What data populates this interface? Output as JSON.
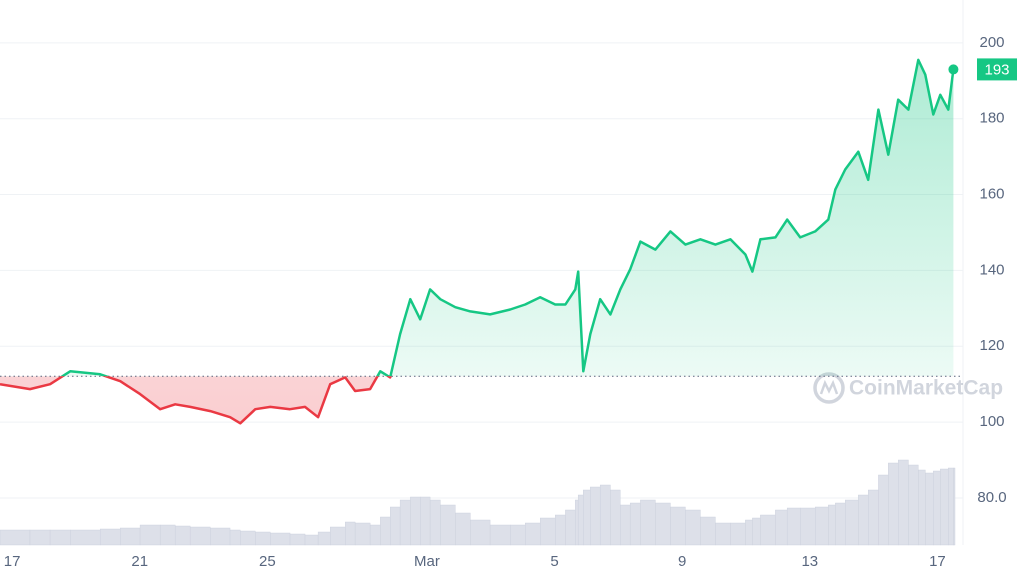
{
  "chart_data": {
    "type": "line",
    "x": [
      -0.38,
      0.56,
      1.19,
      1.82,
      2.76,
      3.39,
      4.01,
      4.64,
      5.11,
      5.58,
      6.21,
      6.83,
      7.15,
      7.62,
      8.09,
      8.71,
      9.18,
      9.59,
      9.97,
      10.44,
      10.75,
      11.22,
      11.54,
      11.85,
      12.16,
      12.48,
      12.79,
      13.1,
      13.42,
      13.89,
      14.36,
      14.98,
      15.61,
      16.08,
      16.55,
      17.02,
      17.34,
      17.65,
      17.74,
      17.9,
      18.12,
      18.43,
      18.75,
      19.06,
      19.37,
      19.69,
      20.16,
      20.63,
      21.1,
      21.57,
      22.04,
      22.51,
      22.98,
      23.2,
      23.45,
      23.92,
      24.29,
      24.7,
      25.17,
      25.58,
      25.8,
      26.11,
      26.52,
      26.83,
      27.15,
      27.46,
      27.77,
      28.09,
      28.4,
      28.62,
      28.87,
      29.09,
      29.34,
      29.5
    ],
    "values": [
      110,
      108.7,
      110,
      113.4,
      112.6,
      110.8,
      107.4,
      103.4,
      104.7,
      104,
      102.9,
      101.3,
      99.7,
      103.4,
      104,
      103.4,
      104,
      101.3,
      110,
      111.8,
      108.2,
      108.7,
      113.4,
      111.8,
      123.2,
      132.4,
      127.1,
      135,
      132.4,
      130.3,
      129.2,
      128.4,
      129.7,
      131,
      132.9,
      131,
      131,
      135,
      139.7,
      113.4,
      123.2,
      132.4,
      128.4,
      135,
      140.3,
      147.6,
      145.5,
      150.3,
      146.8,
      148.2,
      146.8,
      148.2,
      144.2,
      139.7,
      148.2,
      148.7,
      153.4,
      148.7,
      150.3,
      153.4,
      161.3,
      166.6,
      171.3,
      163.9,
      182.4,
      170.5,
      185,
      182.4,
      195.5,
      191.6,
      181.1,
      186.3,
      182.4,
      193
    ],
    "volume": [
      15,
      15,
      15,
      15,
      16,
      17,
      20,
      20,
      19,
      18,
      17,
      15,
      14,
      13,
      12,
      11,
      10,
      13,
      18,
      23,
      22,
      20,
      28,
      38,
      45,
      48,
      48,
      45,
      40,
      32,
      25,
      20,
      20,
      22,
      27,
      30,
      35,
      45,
      50,
      55,
      58,
      60,
      55,
      40,
      42,
      45,
      42,
      38,
      35,
      28,
      22,
      22,
      25,
      27,
      30,
      35,
      37,
      37,
      38,
      40,
      42,
      45,
      50,
      55,
      70,
      82,
      85,
      80,
      75,
      72,
      74,
      76,
      77,
      77
    ],
    "xlim": [
      -0.38,
      29.55
    ],
    "xticks": [
      {
        "value": 0,
        "label": "17"
      },
      {
        "value": 4,
        "label": "21"
      },
      {
        "value": 8,
        "label": "25"
      },
      {
        "value": 13,
        "label": "Mar"
      },
      {
        "value": 17,
        "label": "5"
      },
      {
        "value": 21,
        "label": "9"
      },
      {
        "value": 25,
        "label": "13"
      },
      {
        "value": 29,
        "label": "17"
      }
    ],
    "ylim": [
      67.6,
      211.3
    ],
    "yticks": [
      {
        "value": 80,
        "label": "80.0"
      },
      100,
      120,
      140,
      160,
      180,
      200
    ],
    "y2lim": [
      0,
      545
    ],
    "baseline": 112.1,
    "up_color": "#16c784",
    "down_color": "#ea3943",
    "volume_color": "#dde0e9",
    "grid": true,
    "watermark": "CoinMarketCap"
  }
}
